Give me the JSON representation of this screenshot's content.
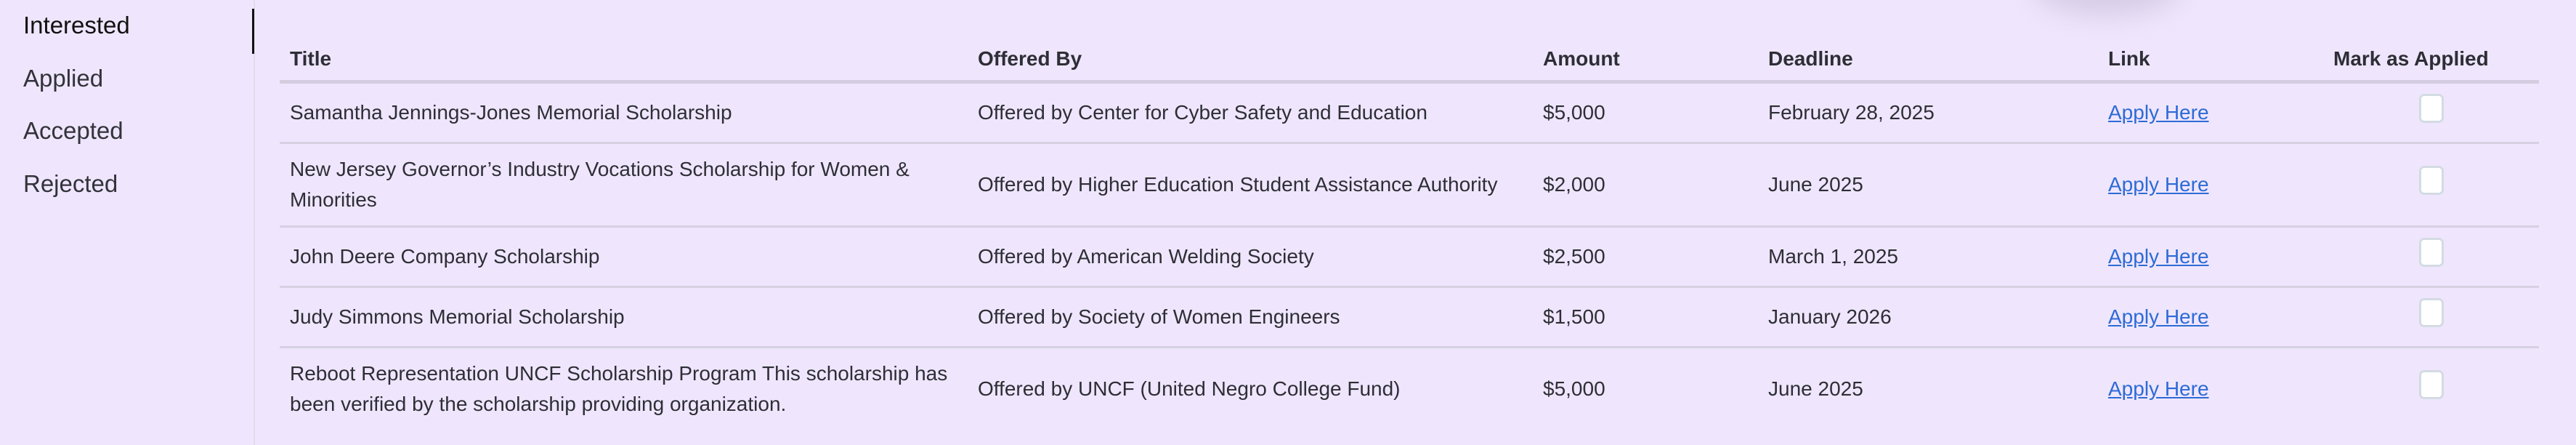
{
  "sidebar": {
    "items": [
      {
        "label": "Interested",
        "active": true
      },
      {
        "label": "Applied",
        "active": false
      },
      {
        "label": "Accepted",
        "active": false
      },
      {
        "label": "Rejected",
        "active": false
      }
    ]
  },
  "table": {
    "headers": {
      "title": "Title",
      "offered_by": "Offered By",
      "amount": "Amount",
      "deadline": "Deadline",
      "link": "Link",
      "mark": "Mark as Applied"
    },
    "rows": [
      {
        "title": "Samantha Jennings-Jones Memorial Scholarship",
        "offered_by": "Offered by Center for Cyber Safety and Education",
        "amount": "$5,000",
        "deadline": "February 28, 2025",
        "link": "Apply Here",
        "applied": false
      },
      {
        "title": "New Jersey Governor’s Industry Vocations Scholarship for Women & Minorities",
        "offered_by": "Offered by Higher Education Student Assistance Authority",
        "amount": "$2,000",
        "deadline": "June 2025",
        "link": "Apply Here",
        "applied": false
      },
      {
        "title": "John Deere Company Scholarship",
        "offered_by": "Offered by American Welding Society",
        "amount": "$2,500",
        "deadline": "March 1, 2025",
        "link": "Apply Here",
        "applied": false
      },
      {
        "title": "Judy Simmons Memorial Scholarship",
        "offered_by": "Offered by Society of Women Engineers",
        "amount": "$1,500",
        "deadline": "January 2026",
        "link": "Apply Here",
        "applied": false
      },
      {
        "title": "Reboot Representation UNCF Scholarship Program This scholarship has been verified by the scholarship providing organization.",
        "offered_by": "Offered by UNCF (United Negro College Fund)",
        "amount": "$5,000",
        "deadline": "June 2025",
        "link": "Apply Here",
        "applied": false
      }
    ]
  },
  "colors": {
    "background": "#efe6fd",
    "link": "#2d6bd6",
    "text": "#2e2e36"
  }
}
